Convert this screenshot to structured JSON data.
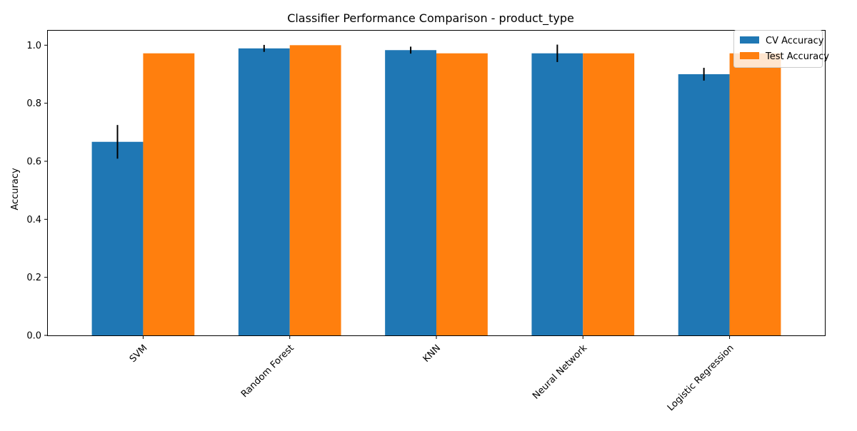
{
  "chart_data": {
    "type": "bar",
    "title": "Classifier Performance Comparison - product_type",
    "xlabel": "",
    "ylabel": "Accuracy",
    "ylim": [
      0,
      1.05
    ],
    "yticks": [
      0.0,
      0.2,
      0.4,
      0.6,
      0.8,
      1.0
    ],
    "ytick_labels": [
      "0.0",
      "0.2",
      "0.4",
      "0.6",
      "0.8",
      "1.0"
    ],
    "categories": [
      "SVM",
      "Random Forest",
      "KNN",
      "Neural Network",
      "Logistic Regression"
    ],
    "series": [
      {
        "name": "CV Accuracy",
        "color": "#1f77b4",
        "values": [
          0.667,
          0.989,
          0.983,
          0.972,
          0.9
        ],
        "errors": [
          0.058,
          0.012,
          0.012,
          0.03,
          0.022
        ]
      },
      {
        "name": "Test Accuracy",
        "color": "#ff7f0e",
        "values": [
          0.972,
          1.0,
          0.972,
          0.972,
          0.972
        ]
      }
    ],
    "grid": false,
    "legend_position": "top-right",
    "xtick_rotation_deg": 45
  }
}
